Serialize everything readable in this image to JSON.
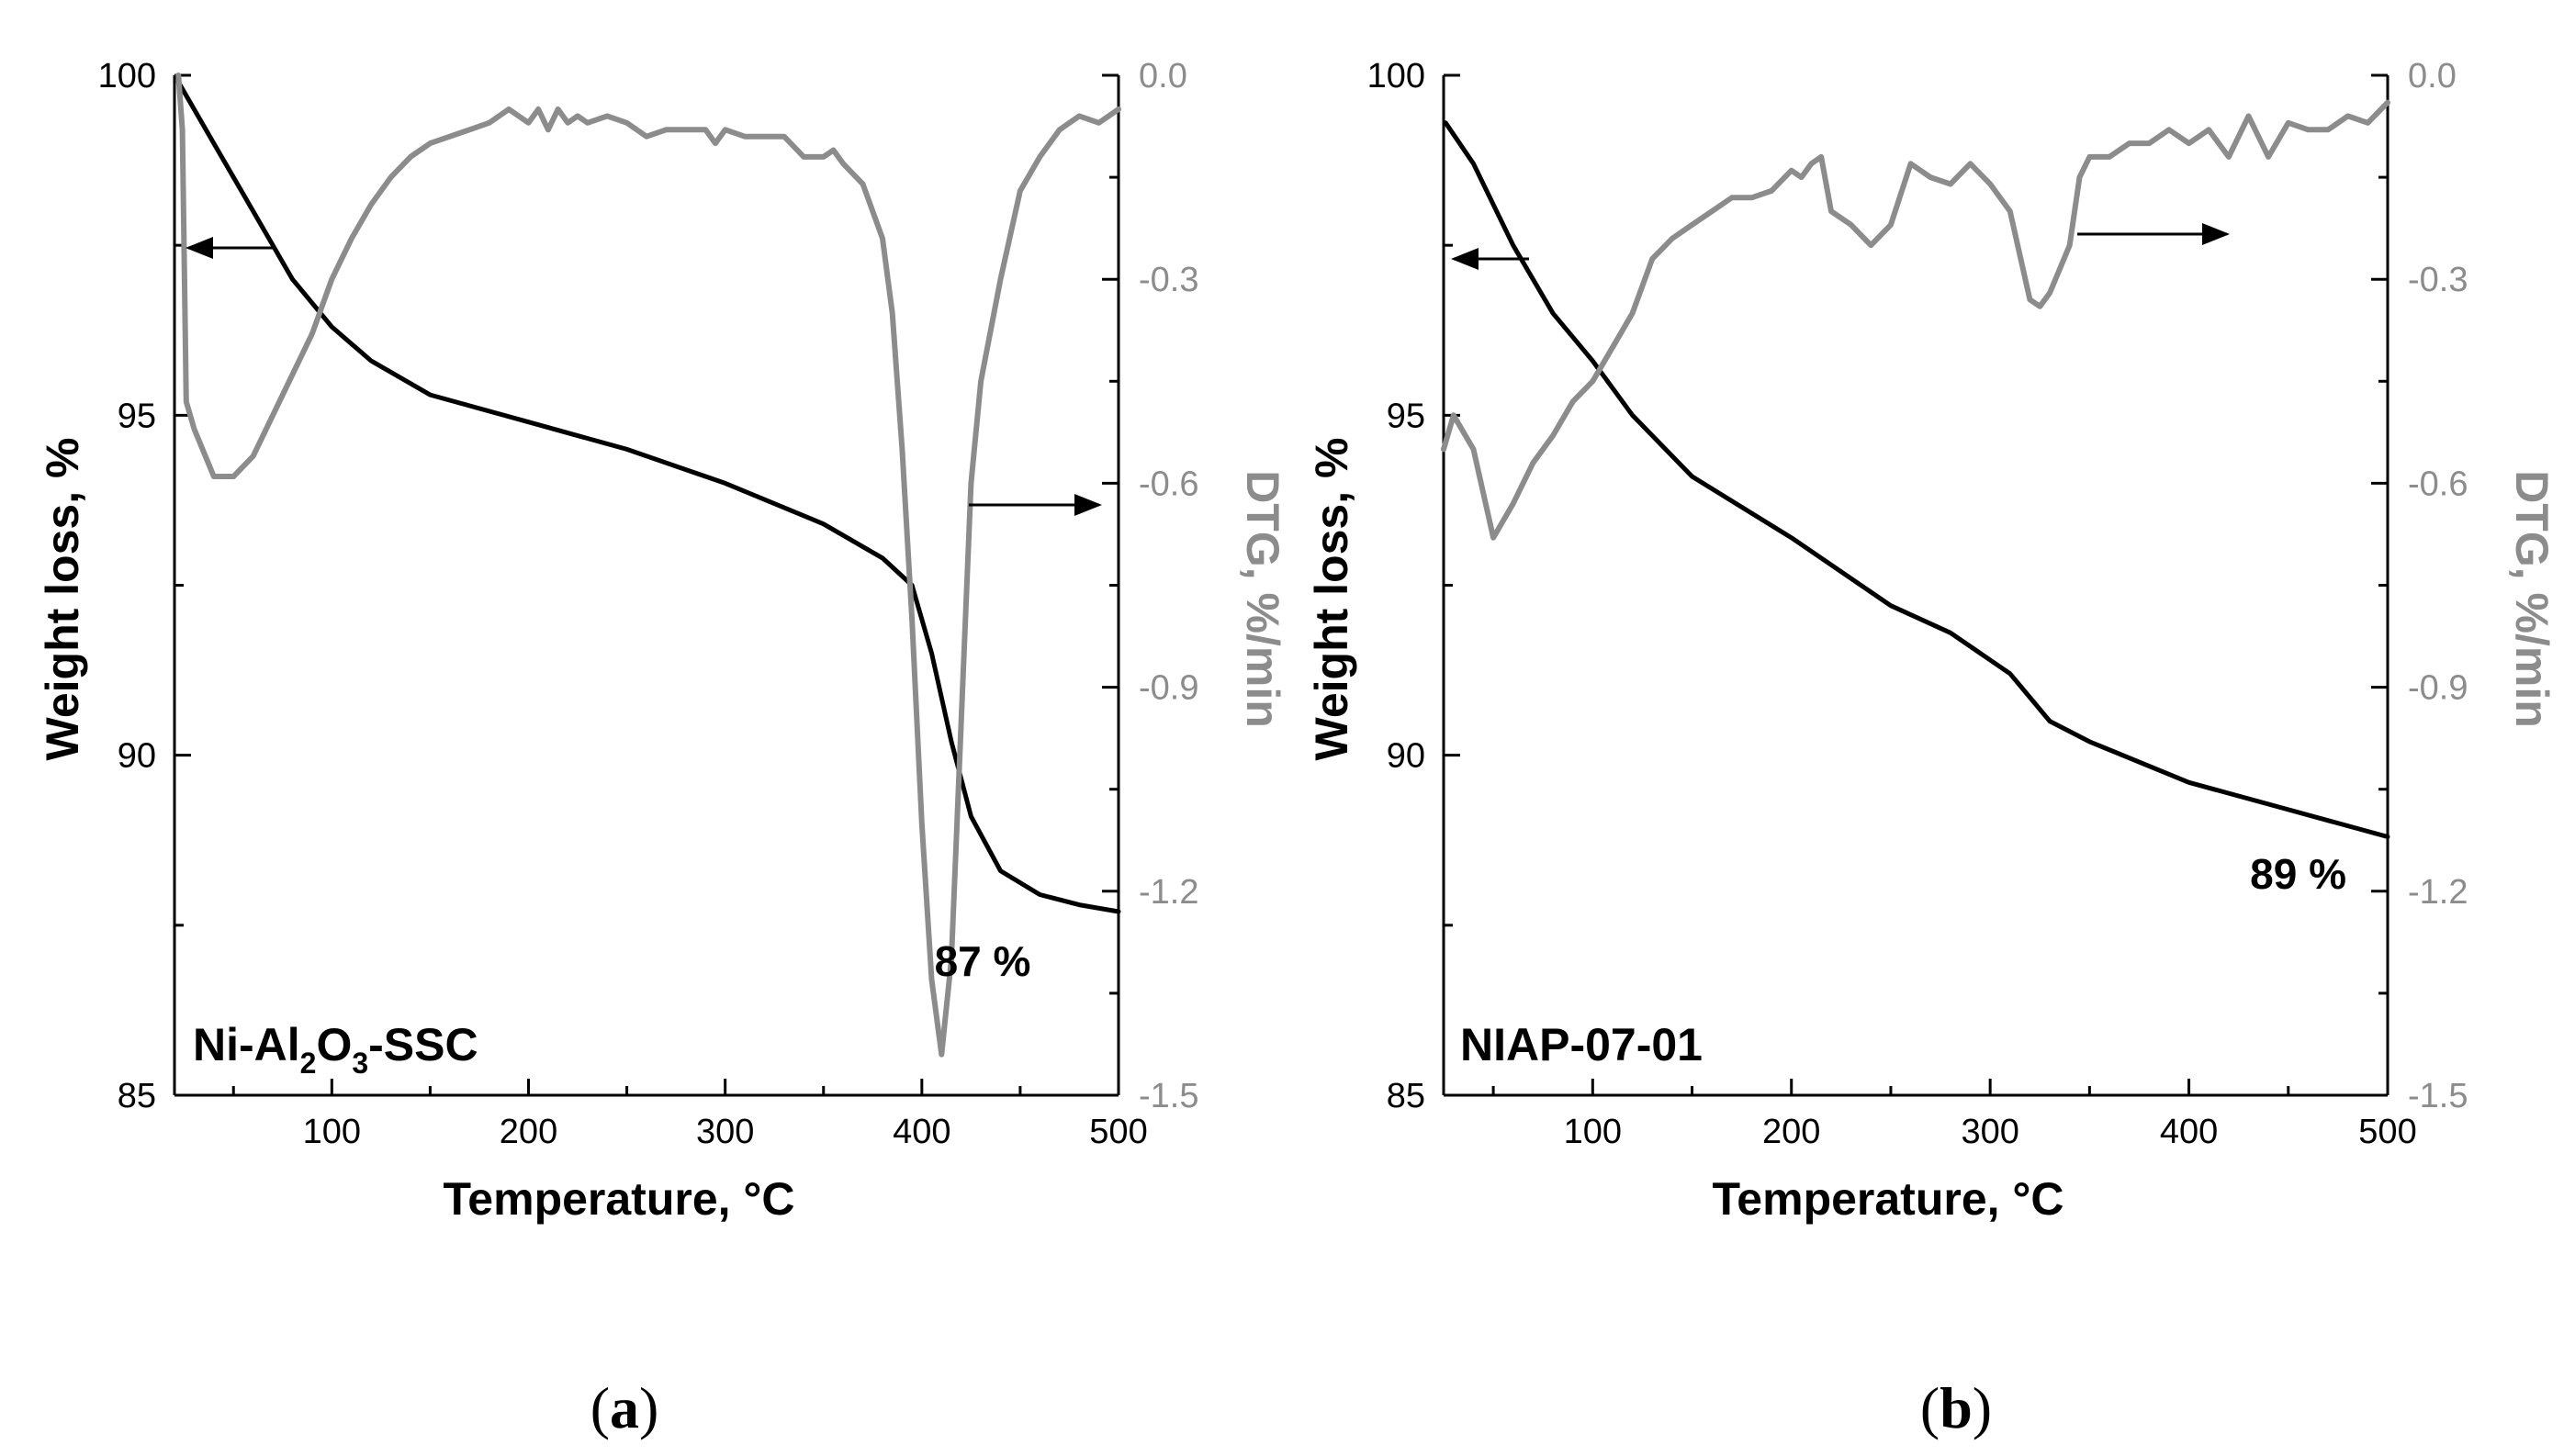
{
  "colors": {
    "weight": "#000000",
    "dtg": "#8c8c8c",
    "axis": "#000000",
    "background": "#ffffff"
  },
  "chart_data": [
    {
      "type": "line",
      "panel_label": "a",
      "sample_parts": [
        "Ni-Al",
        "2",
        "O",
        "3",
        "-SSC"
      ],
      "xlabel": "Temperature, °C",
      "ylabel_left": "Weight loss, %",
      "ylabel_right": "DTG, %/min",
      "xlim": [
        20,
        500
      ],
      "ylim_left": [
        85,
        100
      ],
      "ylim_right": [
        -1.5,
        0.0
      ],
      "x_ticks": [
        "100",
        "200",
        "300",
        "400",
        "500"
      ],
      "y_left_ticks": [
        "85",
        "90",
        "95",
        "100"
      ],
      "y_right_ticks": [
        "-1.5",
        "-1.2",
        "-0.9",
        "-0.6",
        "-0.3",
        "0.0"
      ],
      "annotation": "87 %",
      "series": [
        {
          "name": "Weight loss",
          "axis": "left",
          "x": [
            22,
            40,
            60,
            80,
            100,
            120,
            150,
            200,
            250,
            300,
            350,
            380,
            395,
            405,
            415,
            425,
            440,
            460,
            480,
            500
          ],
          "y": [
            99.9,
            99.0,
            98.0,
            97.0,
            96.3,
            95.8,
            95.3,
            94.9,
            94.5,
            94.0,
            93.4,
            92.9,
            92.5,
            91.5,
            90.2,
            89.1,
            88.3,
            87.95,
            87.8,
            87.7
          ]
        },
        {
          "name": "DTG",
          "axis": "right",
          "x": [
            22,
            24,
            26,
            30,
            40,
            50,
            60,
            70,
            80,
            90,
            100,
            110,
            120,
            130,
            140,
            150,
            160,
            170,
            180,
            190,
            200,
            205,
            210,
            215,
            220,
            225,
            230,
            240,
            250,
            260,
            270,
            280,
            290,
            295,
            300,
            310,
            320,
            330,
            340,
            350,
            355,
            360,
            370,
            380,
            385,
            390,
            395,
            400,
            405,
            410,
            415,
            420,
            425,
            430,
            440,
            450,
            460,
            470,
            480,
            490,
            500
          ],
          "y": [
            0.0,
            -0.08,
            -0.48,
            -0.52,
            -0.59,
            -0.59,
            -0.56,
            -0.5,
            -0.44,
            -0.38,
            -0.3,
            -0.24,
            -0.19,
            -0.15,
            -0.12,
            -0.1,
            -0.09,
            -0.08,
            -0.07,
            -0.05,
            -0.07,
            -0.05,
            -0.08,
            -0.05,
            -0.07,
            -0.06,
            -0.07,
            -0.06,
            -0.07,
            -0.09,
            -0.08,
            -0.08,
            -0.08,
            -0.1,
            -0.08,
            -0.09,
            -0.09,
            -0.09,
            -0.12,
            -0.12,
            -0.11,
            -0.13,
            -0.16,
            -0.24,
            -0.35,
            -0.55,
            -0.8,
            -1.1,
            -1.33,
            -1.44,
            -1.3,
            -0.95,
            -0.6,
            -0.45,
            -0.3,
            -0.17,
            -0.12,
            -0.08,
            -0.06,
            -0.07,
            -0.05
          ]
        }
      ]
    },
    {
      "type": "line",
      "panel_label": "b",
      "sample_parts": [
        "NIAP-07-01"
      ],
      "xlabel": "Temperature, °C",
      "ylabel_left": "Weight loss, %",
      "ylabel_right": "DTG, %/min",
      "xlim": [
        25,
        500
      ],
      "ylim_left": [
        85,
        100
      ],
      "ylim_right": [
        -1.5,
        0.0
      ],
      "x_ticks": [
        "100",
        "200",
        "300",
        "400",
        "500"
      ],
      "y_left_ticks": [
        "85",
        "90",
        "95",
        "100"
      ],
      "y_right_ticks": [
        "-1.5",
        "-1.2",
        "-0.9",
        "-0.6",
        "-0.3",
        "0.0"
      ],
      "annotation": "89 %",
      "series": [
        {
          "name": "Weight loss",
          "axis": "left",
          "x": [
            26,
            40,
            60,
            80,
            100,
            120,
            150,
            200,
            250,
            280,
            310,
            330,
            350,
            400,
            450,
            500
          ],
          "y": [
            99.3,
            98.7,
            97.5,
            96.5,
            95.8,
            95.0,
            94.1,
            93.2,
            92.2,
            91.8,
            91.2,
            90.5,
            90.2,
            89.6,
            89.2,
            88.8
          ]
        },
        {
          "name": "DTG",
          "axis": "right",
          "x": [
            25,
            30,
            40,
            50,
            60,
            70,
            80,
            90,
            100,
            110,
            120,
            130,
            140,
            150,
            160,
            170,
            180,
            190,
            200,
            205,
            210,
            215,
            220,
            230,
            240,
            250,
            260,
            270,
            280,
            290,
            300,
            310,
            320,
            325,
            330,
            340,
            345,
            350,
            360,
            370,
            380,
            390,
            400,
            410,
            420,
            430,
            440,
            450,
            460,
            470,
            480,
            490,
            500
          ],
          "y": [
            -0.55,
            -0.5,
            -0.55,
            -0.68,
            -0.63,
            -0.57,
            -0.53,
            -0.48,
            -0.45,
            -0.4,
            -0.35,
            -0.27,
            -0.24,
            -0.22,
            -0.2,
            -0.18,
            -0.18,
            -0.17,
            -0.14,
            -0.15,
            -0.13,
            -0.12,
            -0.2,
            -0.22,
            -0.25,
            -0.22,
            -0.13,
            -0.15,
            -0.16,
            -0.13,
            -0.16,
            -0.2,
            -0.33,
            -0.34,
            -0.32,
            -0.25,
            -0.15,
            -0.12,
            -0.12,
            -0.1,
            -0.1,
            -0.08,
            -0.1,
            -0.08,
            -0.12,
            -0.06,
            -0.12,
            -0.07,
            -0.08,
            -0.08,
            -0.06,
            -0.07,
            -0.04
          ]
        }
      ]
    }
  ]
}
